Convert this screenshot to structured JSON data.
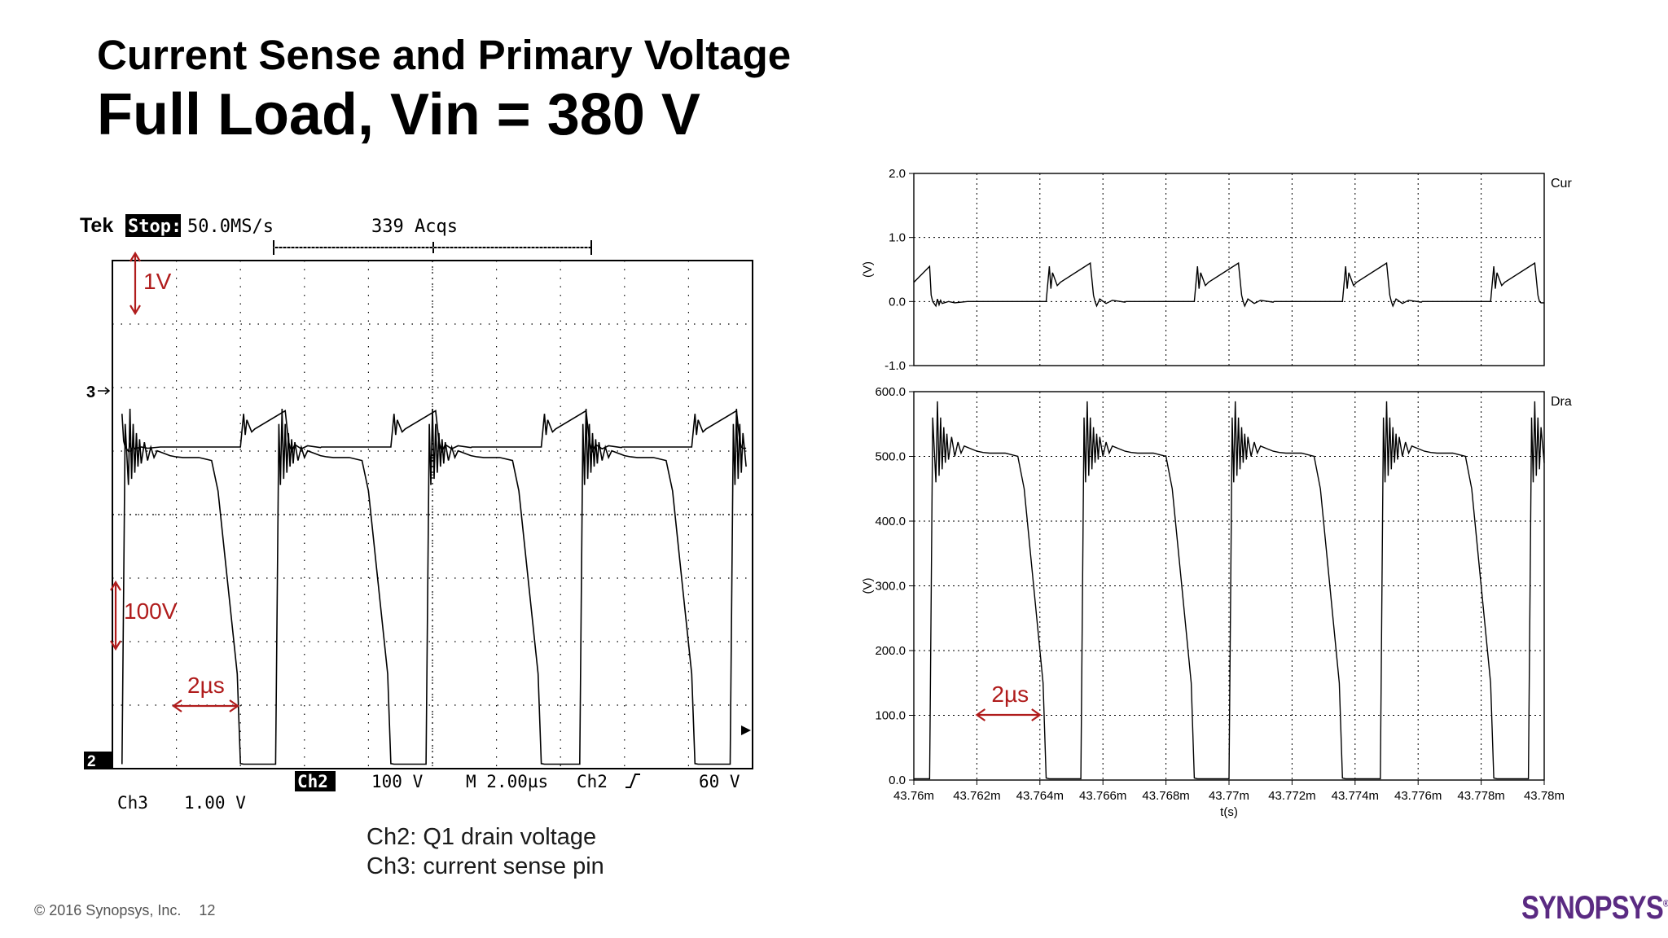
{
  "slide": {
    "title_line1": "Current Sense and Primary Voltage",
    "title_line2": "Full Load, Vin = 380 V",
    "caption": [
      "Ch2: Q1 drain voltage",
      "Ch3: current sense pin"
    ],
    "footer_copyright": "© 2016 Synopsys, Inc.",
    "page_number": "12",
    "logo_text": "SYNOPSYS",
    "logo_mark": "®"
  },
  "scope": {
    "brand": "Tek",
    "mode": "Stop:",
    "sample_rate": "50.0MS/s",
    "acqs": "339 Acqs",
    "ch3_marker": "3",
    "ch2_marker": "2",
    "bottom": {
      "ch2_badge": "Ch2",
      "ch2_scale": "100 V",
      "timebase": "M 2.00µs",
      "trigger": "Ch2",
      "trigger_level": "60 V",
      "ch3": "Ch3",
      "ch3_scale": "1.00 V"
    },
    "annotations": {
      "current_scale": "1V",
      "voltage_scale": "100V",
      "time_scale": "2µs"
    },
    "annotation_color": "#b01c1c"
  },
  "chart_data": [
    {
      "type": "line",
      "title": "Current Sense",
      "ylabel": "(V)",
      "ylim": [
        -1.0,
        2.0
      ],
      "yticks": [
        "2.0",
        "1.0",
        "0.0",
        "-1.0"
      ],
      "xlim": [
        43.76,
        43.78
      ],
      "period_ms": 0.0047,
      "series": [
        {
          "name": "Current Sense",
          "x": [
            43.76,
            43.7605,
            43.76055,
            43.7606,
            43.7607,
            43.76075,
            43.7608,
            43.76085,
            43.7609,
            43.7611,
            43.7613,
            43.7617,
            43.76203,
            43.76295,
            43.7642,
            43.7643,
            43.76435,
            43.7644,
            43.76455,
            43.76465,
            43.7656,
            43.7657,
            43.76575,
            43.7658,
            43.7659,
            43.7661,
            43.7663,
            43.7667,
            43.76673,
            43.76765,
            43.7689,
            43.769,
            43.76905,
            43.7691,
            43.76925,
            43.76935,
            43.7703,
            43.7704,
            43.77045,
            43.7705,
            43.7706,
            43.7708,
            43.771,
            43.7714,
            43.77143,
            43.77235,
            43.7736,
            43.7737,
            43.77375,
            43.7738,
            43.77395,
            43.77405,
            43.775,
            43.7751,
            43.77515,
            43.7752,
            43.7753,
            43.7755,
            43.7757,
            43.7761,
            43.77613,
            43.77705,
            43.7783,
            43.7784,
            43.77845,
            43.7785,
            43.77865,
            43.77875,
            43.7797,
            43.7798,
            43.77985,
            43.7799,
            43.78
          ],
          "y": [
            0.3,
            0.55,
            0.1,
            0.0,
            -0.07,
            0.04,
            -0.05,
            0.02,
            -0.03,
            0.0,
            -0.02,
            0.0,
            0.0,
            0.0,
            0.0,
            0.55,
            0.2,
            0.45,
            0.25,
            0.3,
            0.6,
            0.1,
            0.0,
            -0.07,
            0.04,
            -0.03,
            0.02,
            -0.01,
            0.0,
            0.0,
            0.0,
            0.55,
            0.2,
            0.45,
            0.25,
            0.3,
            0.6,
            0.1,
            0.0,
            -0.07,
            0.04,
            -0.03,
            0.02,
            -0.01,
            0.0,
            0.0,
            0.0,
            0.55,
            0.2,
            0.45,
            0.25,
            0.3,
            0.6,
            0.1,
            0.0,
            -0.07,
            0.04,
            -0.03,
            0.02,
            -0.01,
            0.0,
            0.0,
            0.0,
            0.55,
            0.2,
            0.45,
            0.25,
            0.3,
            0.6,
            0.1,
            0.0,
            -0.02,
            -0.02
          ]
        }
      ],
      "legend_position": "right",
      "grid": true
    },
    {
      "type": "line",
      "title": "Drain Voltage",
      "xlabel": "t(s)",
      "ylabel": "(V)",
      "ylim": [
        0,
        600
      ],
      "yticks": [
        "600.0",
        "500.0",
        "400.0",
        "300.0",
        "200.0",
        "100.0",
        "0.0"
      ],
      "xlim": [
        43.76,
        43.78
      ],
      "xticks": [
        "43.76m",
        "43.762m",
        "43.764m",
        "43.766m",
        "43.768m",
        "43.77m",
        "43.772m",
        "43.774m",
        "43.776m",
        "43.778m",
        "43.78m"
      ],
      "series": [
        {
          "name": "Drain Voltage",
          "x": [
            43.76,
            43.7605,
            43.7606,
            43.7607,
            43.76075,
            43.7608,
            43.76085,
            43.7609,
            43.76095,
            43.761,
            43.76105,
            43.7611,
            43.7612,
            43.7613,
            43.7614,
            43.7615,
            43.7616,
            43.7618,
            43.762,
            43.7622,
            43.7624,
            43.7629,
            43.7633,
            43.7635,
            43.7638,
            43.7641,
            43.7642,
            43.7643,
            43.7653,
            43.7654,
            43.76545,
            43.7655,
            43.76555,
            43.7656,
            43.76565,
            43.7657,
            43.76575,
            43.7658,
            43.76585,
            43.7659,
            43.766,
            43.7661,
            43.7662,
            43.7663,
            43.7665,
            43.7667,
            43.7669,
            43.7671,
            43.7676,
            43.768,
            43.7682,
            43.7685,
            43.7688,
            43.7689,
            43.769,
            43.77,
            43.7701,
            43.77015,
            43.7702,
            43.77025,
            43.7703,
            43.77035,
            43.7704,
            43.77045,
            43.7705,
            43.77055,
            43.7706,
            43.7707,
            43.7708,
            43.7709,
            43.771,
            43.7712,
            43.7714,
            43.7716,
            43.7718,
            43.7723,
            43.7727,
            43.7729,
            43.7732,
            43.7735,
            43.7736,
            43.7737,
            43.7748,
            43.7749,
            43.77495,
            43.775,
            43.77505,
            43.7751,
            43.77515,
            43.7752,
            43.77525,
            43.7753,
            43.77535,
            43.7754,
            43.7755,
            43.7756,
            43.7757,
            43.7758,
            43.776,
            43.7762,
            43.7764,
            43.7766,
            43.7771,
            43.7775,
            43.7777,
            43.778,
            43.7783,
            43.7784,
            43.7785,
            43.7795,
            43.7796,
            43.77965,
            43.7797,
            43.77975,
            43.7798,
            43.77985,
            43.7799,
            43.78
          ],
          "y": [
            2,
            2,
            560,
            460,
            585,
            470,
            560,
            480,
            545,
            490,
            535,
            495,
            530,
            500,
            522,
            505,
            516,
            512,
            508,
            506,
            505,
            505,
            500,
            450,
            300,
            150,
            3,
            2,
            2,
            560,
            460,
            585,
            470,
            560,
            480,
            545,
            490,
            535,
            495,
            530,
            500,
            522,
            505,
            516,
            512,
            508,
            506,
            505,
            505,
            500,
            450,
            300,
            150,
            3,
            2,
            2,
            560,
            460,
            585,
            470,
            560,
            480,
            545,
            490,
            535,
            495,
            530,
            500,
            522,
            505,
            516,
            512,
            508,
            506,
            505,
            505,
            500,
            450,
            300,
            150,
            3,
            2,
            2,
            560,
            460,
            585,
            470,
            560,
            480,
            545,
            490,
            535,
            495,
            530,
            500,
            522,
            505,
            516,
            512,
            508,
            506,
            505,
            505,
            500,
            450,
            300,
            150,
            3,
            2,
            2,
            560,
            460,
            585,
            470,
            560,
            480,
            545,
            490
          ]
        }
      ],
      "annotation": "2µs",
      "annotation_color": "#b01c1c",
      "legend_position": "right",
      "grid": true
    }
  ]
}
